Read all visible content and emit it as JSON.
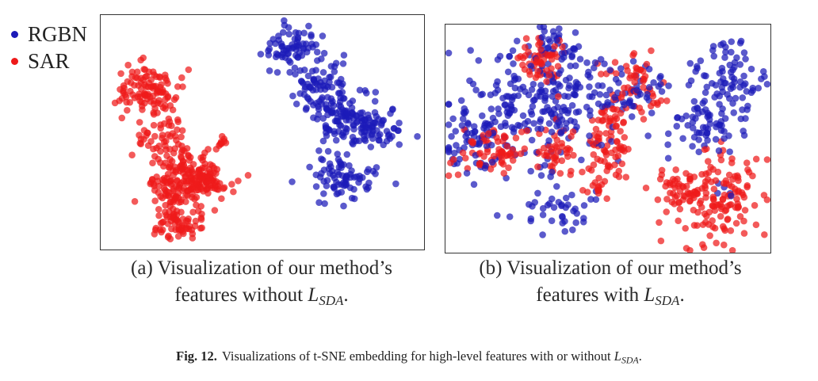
{
  "legend": [
    {
      "label": "RGBN",
      "color": "#1c1ab8"
    },
    {
      "label": "SAR",
      "color": "#ee1a1a"
    }
  ],
  "subcaptions": {
    "a": {
      "line1": "(a) Visualization of our method’s",
      "line2_prefix": "features without ",
      "symbol": "L",
      "subscript": "SDA",
      "suffix": "."
    },
    "b": {
      "line1": "(b) Visualization of our method’s",
      "line2_prefix": "features with ",
      "symbol": "L",
      "subscript": "SDA",
      "suffix": "."
    }
  },
  "figure_caption": {
    "label": "Fig. 12.",
    "text": "Visualizations of t-SNE embedding for high-level features with or without ",
    "symbol": "L",
    "subscript": "SDA",
    "suffix": "."
  },
  "chart_data": [
    {
      "type": "scatter",
      "title": "",
      "xlabel": "",
      "ylabel": "",
      "xlim": [
        0,
        100
      ],
      "ylim": [
        0,
        100
      ],
      "grid": false,
      "legend_position": "left",
      "series": [
        {
          "name": "RGBN",
          "color": "#1c1ab8",
          "clusters": [
            {
              "cx": 60,
              "cy": 86,
              "sx": 5,
              "sy": 4,
              "n": 70
            },
            {
              "cx": 68,
              "cy": 70,
              "sx": 4,
              "sy": 5,
              "n": 70
            },
            {
              "cx": 75,
              "cy": 55,
              "sx": 5,
              "sy": 6,
              "n": 100
            },
            {
              "cx": 85,
              "cy": 52,
              "sx": 5,
              "sy": 4,
              "n": 60
            },
            {
              "cx": 74,
              "cy": 30,
              "sx": 5,
              "sy": 5,
              "n": 80
            }
          ]
        },
        {
          "name": "SAR",
          "color": "#ee1a1a",
          "clusters": [
            {
              "cx": 14,
              "cy": 67,
              "sx": 5,
              "sy": 6,
              "n": 110
            },
            {
              "cx": 18,
              "cy": 47,
              "sx": 4,
              "sy": 5,
              "n": 50
            },
            {
              "cx": 25,
              "cy": 28,
              "sx": 5,
              "sy": 7,
              "n": 170
            },
            {
              "cx": 34,
              "cy": 30,
              "sx": 4,
              "sy": 4,
              "n": 60
            },
            {
              "cx": 24,
              "cy": 10,
              "sx": 4,
              "sy": 3,
              "n": 60
            },
            {
              "cx": 37,
              "cy": 46,
              "sx": 1.5,
              "sy": 1.5,
              "n": 10
            }
          ]
        }
      ]
    },
    {
      "type": "scatter",
      "title": "",
      "xlabel": "",
      "ylabel": "",
      "xlim": [
        0,
        100
      ],
      "ylim": [
        0,
        100
      ],
      "grid": false,
      "series": [
        {
          "name": "RGBN",
          "color": "#1c1ab8",
          "clusters": [
            {
              "cx": 30,
              "cy": 65,
              "sx": 14,
              "sy": 12,
              "n": 230
            },
            {
              "cx": 10,
              "cy": 50,
              "sx": 5,
              "sy": 7,
              "n": 60
            },
            {
              "cx": 32,
              "cy": 90,
              "sx": 7,
              "sy": 5,
              "n": 40
            },
            {
              "cx": 88,
              "cy": 76,
              "sx": 6,
              "sy": 8,
              "n": 80
            },
            {
              "cx": 80,
              "cy": 55,
              "sx": 6,
              "sy": 6,
              "n": 60
            },
            {
              "cx": 35,
              "cy": 18,
              "sx": 7,
              "sy": 5,
              "n": 40
            },
            {
              "cx": 58,
              "cy": 72,
              "sx": 6,
              "sy": 6,
              "n": 40
            },
            {
              "cx": 88,
              "cy": 28,
              "sx": 2,
              "sy": 2,
              "n": 5
            }
          ]
        },
        {
          "name": "SAR",
          "color": "#ee1a1a",
          "clusters": [
            {
              "cx": 30,
              "cy": 84,
              "sx": 4,
              "sy": 5,
              "n": 55
            },
            {
              "cx": 15,
              "cy": 45,
              "sx": 5,
              "sy": 5,
              "n": 70
            },
            {
              "cx": 34,
              "cy": 45,
              "sx": 3,
              "sy": 5,
              "n": 40
            },
            {
              "cx": 51,
              "cy": 50,
              "sx": 4,
              "sy": 10,
              "n": 85
            },
            {
              "cx": 57,
              "cy": 75,
              "sx": 3,
              "sy": 6,
              "n": 40
            },
            {
              "cx": 72,
              "cy": 28,
              "sx": 5,
              "sy": 5,
              "n": 40
            },
            {
              "cx": 83,
              "cy": 25,
              "sx": 7,
              "sy": 10,
              "n": 140
            },
            {
              "cx": 46,
              "cy": 28,
              "sx": 2,
              "sy": 2,
              "n": 12
            },
            {
              "cx": 64,
              "cy": 68,
              "sx": 2,
              "sy": 2,
              "n": 10
            }
          ]
        }
      ]
    }
  ]
}
